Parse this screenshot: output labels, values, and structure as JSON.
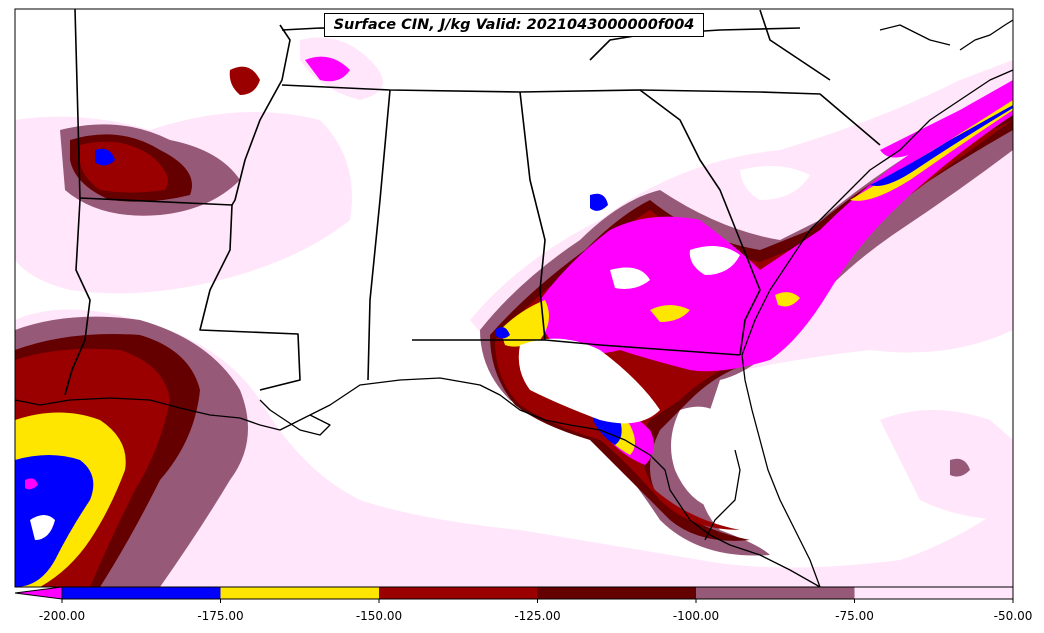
{
  "title": "Surface CIN, J/kg Valid: 2021043000000f004",
  "colorbar": {
    "ticks": [
      "-200.00",
      "-175.00",
      "-150.00",
      "-125.00",
      "-100.00",
      "-75.00",
      "-50.00"
    ],
    "colors": [
      "#ff00ff",
      "#0000ff",
      "#ffe600",
      "#9b0000",
      "#640000",
      "#965a78",
      "#ffe6fa"
    ],
    "extend": "min"
  }
}
